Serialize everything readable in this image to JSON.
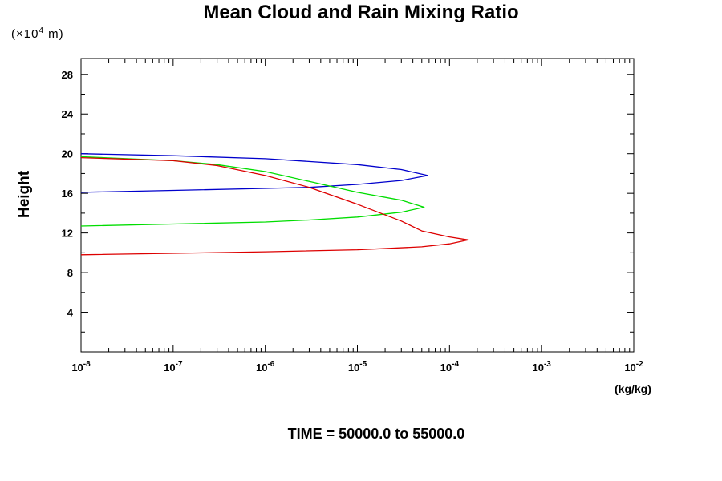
{
  "chart_data": {
    "type": "line",
    "title": "Mean Cloud and Rain Mixing Ratio",
    "ylabel": "Height",
    "y_units_base": "(×10",
    "y_units_exp": "4",
    "y_units_tail": " m)",
    "xunits": "(kg/kg)",
    "footer": "TIME = 50000.0 to 55000.0",
    "x_scale": "log",
    "xlim": [
      1e-08,
      0.01
    ],
    "ylim": [
      0,
      29.6
    ],
    "x_ticks": [
      {
        "base": "10",
        "exp": "-8",
        "value": 1e-08
      },
      {
        "base": "10",
        "exp": "-7",
        "value": 1e-07
      },
      {
        "base": "10",
        "exp": "-6",
        "value": 1e-06
      },
      {
        "base": "10",
        "exp": "-5",
        "value": 1e-05
      },
      {
        "base": "10",
        "exp": "-4",
        "value": 0.0001
      },
      {
        "base": "10",
        "exp": "-3",
        "value": 0.001
      },
      {
        "base": "10",
        "exp": "-2",
        "value": 0.01
      }
    ],
    "y_ticks": [
      "4",
      "8",
      "12",
      "16",
      "20",
      "24",
      "28"
    ],
    "series": [
      {
        "color": "#0000cc",
        "points": [
          [
            1e-08,
            16.1
          ],
          [
            1e-07,
            16.3
          ],
          [
            1e-06,
            16.5
          ],
          [
            3e-06,
            16.6
          ],
          [
            1e-05,
            16.9
          ],
          [
            3e-05,
            17.3
          ],
          [
            5.8e-05,
            17.8
          ],
          [
            3e-05,
            18.4
          ],
          [
            1e-05,
            18.9
          ],
          [
            1e-06,
            19.5
          ],
          [
            1e-07,
            19.8
          ],
          [
            1e-08,
            20.0
          ]
        ]
      },
      {
        "color": "#00dd00",
        "points": [
          [
            1e-08,
            12.7
          ],
          [
            1e-07,
            12.9
          ],
          [
            1e-06,
            13.1
          ],
          [
            3e-06,
            13.3
          ],
          [
            1e-05,
            13.6
          ],
          [
            3e-05,
            14.1
          ],
          [
            5.3e-05,
            14.6
          ],
          [
            3e-05,
            15.3
          ],
          [
            1e-05,
            16.1
          ],
          [
            3e-06,
            17.2
          ],
          [
            1e-06,
            18.2
          ],
          [
            3e-07,
            18.9
          ],
          [
            1e-07,
            19.3
          ],
          [
            1e-08,
            19.7
          ]
        ]
      },
      {
        "color": "#dd0000",
        "points": [
          [
            1e-08,
            9.8
          ],
          [
            1e-07,
            9.95
          ],
          [
            1e-06,
            10.1
          ],
          [
            1e-05,
            10.3
          ],
          [
            5e-05,
            10.6
          ],
          [
            0.0001,
            10.9
          ],
          [
            0.00016,
            11.3
          ],
          [
            0.0001,
            11.6
          ],
          [
            5e-05,
            12.2
          ],
          [
            3e-05,
            13.2
          ],
          [
            1e-05,
            14.9
          ],
          [
            3e-06,
            16.6
          ],
          [
            1e-06,
            17.8
          ],
          [
            3e-07,
            18.8
          ],
          [
            1e-07,
            19.3
          ],
          [
            1e-08,
            19.6
          ]
        ]
      }
    ]
  }
}
